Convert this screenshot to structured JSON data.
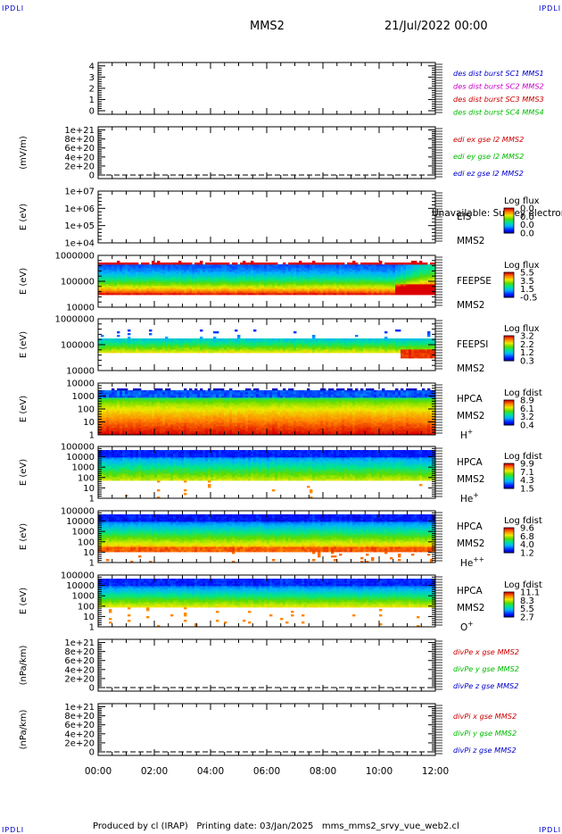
{
  "header": {
    "corner_tl": "IPDLI",
    "corner_tr": "IPDLI",
    "corner_bl": "IPDLI",
    "corner_br": "IPDLI",
    "spacecraft": "MMS2",
    "date": "21/Jul/2022 00:00"
  },
  "footer": {
    "text": "Produced by cl (IRAP)   Printing date: 03/Jan/2025   mms_mms2_srvy_vue_web2.cl"
  },
  "chart_data": {
    "type": "heatmap",
    "x": {
      "tick_labels": [
        "00:00",
        "02:00",
        "04:00",
        "06:00",
        "08:00",
        "10:00",
        "12:00"
      ],
      "range_hours": [
        0,
        12
      ]
    },
    "panels": [
      {
        "id": "des-dist",
        "kind": "line",
        "y_ticks": [
          "4",
          "3",
          "2",
          "1",
          "0"
        ],
        "y_range": [
          0,
          4.3
        ],
        "legend": [
          {
            "text": "des dist burst SC1 MMS1",
            "color": "#0000cc"
          },
          {
            "text": "des dist burst SC2 MMS2",
            "color": "#cc00cc"
          },
          {
            "text": "des dist burst SC3 MMS3",
            "color": "#cc0000"
          },
          {
            "text": "des dist burst SC4 MMS4",
            "color": "#00bb00"
          }
        ]
      },
      {
        "id": "edi-e",
        "kind": "line",
        "ylabel": "(mV/m)",
        "y_ticks": [
          "1e+21",
          "8e+20",
          "6e+20",
          "4e+20",
          "2e+20",
          "0"
        ],
        "y_range": [
          0,
          1.07e+21
        ],
        "dashed_zero": true,
        "legend": [
          {
            "text": "edi ex gse l2 MMS2",
            "color": "#cc0000"
          },
          {
            "text": "edi ey gse l2 MMS2",
            "color": "#00bb00"
          },
          {
            "text": "edi ez gse l2 MMS2",
            "color": "#0000cc"
          }
        ]
      },
      {
        "id": "eis",
        "kind": "spectrogram",
        "ylabel": "E (eV)",
        "log_y": true,
        "y_ticks": [
          "1e+07",
          "1e+06",
          "1e+05",
          "1e+04"
        ],
        "labels": [
          "EIS",
          "MMS2"
        ],
        "overlay_text": "Unavailable: Survey electron total",
        "colorbar": {
          "title": "Log flux",
          "ticks": [
            "0.0",
            "0.0",
            "0.0",
            "0.0"
          ]
        },
        "fill": "empty"
      },
      {
        "id": "feeps-e",
        "kind": "spectrogram",
        "ylabel": "E (eV)",
        "log_y": true,
        "y_ticks": [
          "1000000",
          "100000",
          "10000"
        ],
        "labels": [
          "FEEPSE",
          "MMS2"
        ],
        "colorbar": {
          "title": "Log flux",
          "ticks": [
            "5.5",
            "3.5",
            "1.5",
            "-0.5"
          ]
        },
        "fill": "feepse"
      },
      {
        "id": "feeps-i",
        "kind": "spectrogram",
        "ylabel": "E (eV)",
        "log_y": true,
        "y_ticks": [
          "1000000",
          "100000",
          "10000"
        ],
        "labels": [
          "FEEPSI",
          "MMS2"
        ],
        "colorbar": {
          "title": "Log flux",
          "ticks": [
            "3.2",
            "2.2",
            "1.2",
            "0.3"
          ]
        },
        "fill": "feepsi"
      },
      {
        "id": "hpca-h",
        "kind": "spectrogram",
        "ylabel": "E (eV)",
        "log_y": true,
        "y_ticks": [
          "10000",
          "1000",
          "100",
          "10",
          "1"
        ],
        "labels": [
          "HPCA",
          "MMS2"
        ],
        "species": {
          "base": "H",
          "sup": "+"
        },
        "colorbar": {
          "title": "Log fdist",
          "ticks": [
            "8.9",
            "6.1",
            "3.2",
            "0.4"
          ]
        },
        "fill": "hpca_h"
      },
      {
        "id": "hpca-he",
        "kind": "spectrogram",
        "ylabel": "E (eV)",
        "log_y": true,
        "y_ticks": [
          "100000",
          "10000",
          "1000",
          "100",
          "10",
          "1"
        ],
        "labels": [
          "HPCA",
          "MMS2"
        ],
        "species": {
          "base": "He",
          "sup": "+"
        },
        "colorbar": {
          "title": "Log fdist",
          "ticks": [
            "9.9",
            "7.1",
            "4.3",
            "1.5"
          ]
        },
        "fill": "hpca_he"
      },
      {
        "id": "hpca-hepp",
        "kind": "spectrogram",
        "ylabel": "E (eV)",
        "log_y": true,
        "y_ticks": [
          "100000",
          "10000",
          "1000",
          "100",
          "10",
          "1"
        ],
        "labels": [
          "HPCA",
          "MMS2"
        ],
        "species": {
          "base": "He",
          "sup": "++"
        },
        "colorbar": {
          "title": "Log fdist",
          "ticks": [
            "9.6",
            "6.8",
            "4.0",
            "1.2"
          ]
        },
        "fill": "hpca_hepp"
      },
      {
        "id": "hpca-o",
        "kind": "spectrogram",
        "ylabel": "E (eV)",
        "log_y": true,
        "y_ticks": [
          "100000",
          "10000",
          "1000",
          "100",
          "10",
          "1"
        ],
        "labels": [
          "HPCA",
          "MMS2"
        ],
        "species": {
          "base": "O",
          "sup": "+"
        },
        "colorbar": {
          "title": "Log fdist",
          "ticks": [
            "11.1",
            "8.3",
            "5.5",
            "2.7"
          ]
        },
        "fill": "hpca_o"
      },
      {
        "id": "divpe",
        "kind": "line",
        "ylabel": "(nPa/km)",
        "y_ticks": [
          "1e+21",
          "8e+20",
          "6e+20",
          "4e+20",
          "2e+20",
          "0"
        ],
        "y_range": [
          0,
          1.07e+21
        ],
        "dashed_zero": true,
        "legend": [
          {
            "text": "divPe x gse MMS2",
            "color": "#cc0000"
          },
          {
            "text": "divPe y gse MMS2",
            "color": "#00bb00"
          },
          {
            "text": "divPe z gse MMS2",
            "color": "#0000cc"
          }
        ]
      },
      {
        "id": "divpi",
        "kind": "line",
        "ylabel": "(nPa/km)",
        "y_ticks": [
          "1e+21",
          "8e+20",
          "6e+20",
          "4e+20",
          "2e+20",
          "0"
        ],
        "y_range": [
          0,
          1.07e+21
        ],
        "dashed_zero": true,
        "legend": [
          {
            "text": "divPi x gse MMS2",
            "color": "#cc0000"
          },
          {
            "text": "divPi y gse MMS2",
            "color": "#00bb00"
          },
          {
            "text": "divPi z gse MMS2",
            "color": "#0000cc"
          }
        ]
      }
    ]
  }
}
